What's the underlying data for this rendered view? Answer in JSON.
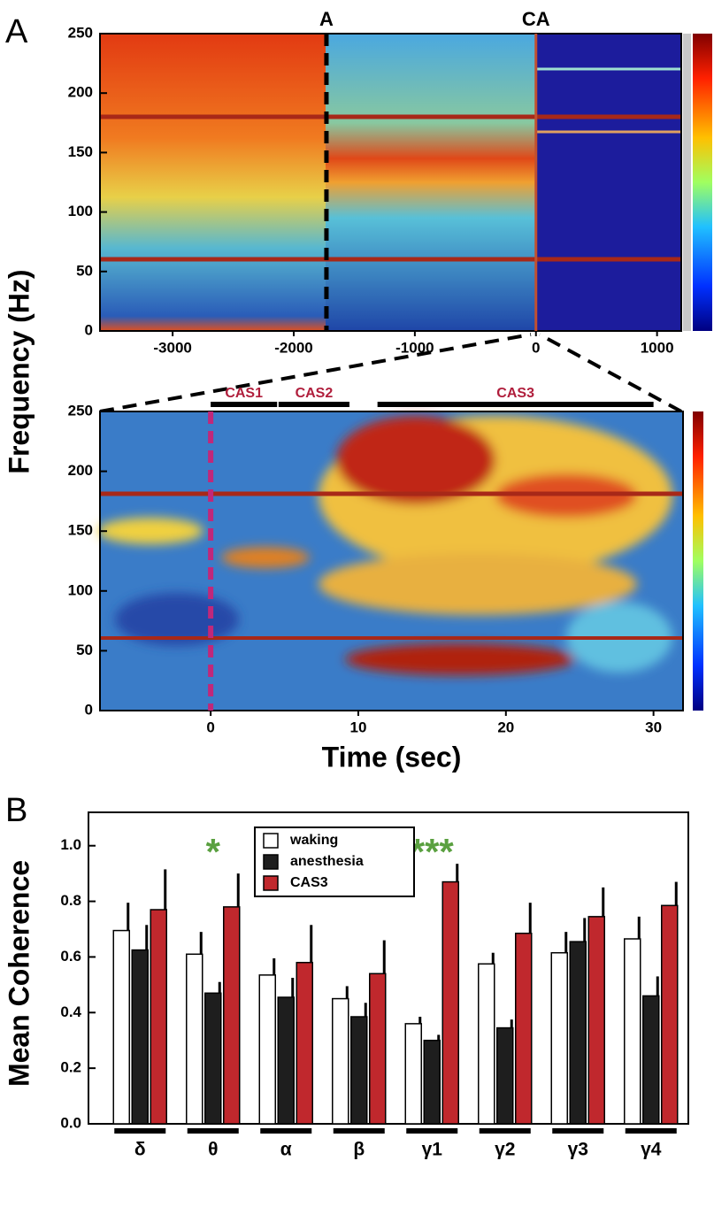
{
  "chart_data": [
    {
      "type": "spectrogram",
      "panel_label": "A",
      "ylabel": "Frequency (Hz)",
      "xlim": [
        -3600,
        1200
      ],
      "xticks": [
        -3000,
        -2000,
        -1000,
        0,
        1000
      ],
      "ylim": [
        0,
        250
      ],
      "yticks": [
        0,
        50,
        100,
        150,
        200,
        250
      ],
      "events": [
        {
          "label": "A",
          "x": -1730
        },
        {
          "label": "CA",
          "x": 0
        }
      ]
    },
    {
      "type": "spectrogram",
      "xlabel": "Time (sec)",
      "xlim": [
        -7.5,
        32
      ],
      "xticks": [
        0,
        10,
        20,
        30
      ],
      "ylim": [
        0,
        250
      ],
      "yticks": [
        0,
        50,
        100,
        150,
        200,
        250
      ],
      "marker_x": 0,
      "spans": [
        {
          "label": "CAS1",
          "start": 0,
          "end": 4.5
        },
        {
          "label": "CAS2",
          "start": 4.6,
          "end": 9.4
        },
        {
          "label": "CAS3",
          "start": 11.3,
          "end": 30
        }
      ]
    },
    {
      "type": "bar",
      "panel_label": "B",
      "ylabel": "Mean Coherence",
      "categories": [
        "δ",
        "θ",
        "α",
        "β",
        "γ1",
        "γ2",
        "γ3",
        "γ4"
      ],
      "series": [
        {
          "name": "waking",
          "color": "#ffffff",
          "values": [
            0.695,
            0.61,
            0.535,
            0.45,
            0.36,
            0.575,
            0.615,
            0.665
          ],
          "errors": [
            0.1,
            0.08,
            0.06,
            0.045,
            0.025,
            0.04,
            0.075,
            0.08
          ]
        },
        {
          "name": "anesthesia",
          "color": "#1e1e1e",
          "values": [
            0.625,
            0.47,
            0.455,
            0.385,
            0.3,
            0.345,
            0.655,
            0.46
          ],
          "errors": [
            0.09,
            0.04,
            0.07,
            0.05,
            0.02,
            0.03,
            0.085,
            0.07
          ]
        },
        {
          "name": "CAS3",
          "color": "#c0282d",
          "values": [
            0.77,
            0.78,
            0.58,
            0.54,
            0.87,
            0.685,
            0.745,
            0.785
          ],
          "errors": [
            0.145,
            0.12,
            0.135,
            0.12,
            0.065,
            0.11,
            0.105,
            0.085
          ]
        }
      ],
      "ylim": [
        0,
        1.12
      ],
      "yticks": [
        {
          "value": 0,
          "label": "0.0"
        },
        0.2,
        0.4,
        0.6,
        0.8,
        {
          "value": 1,
          "label": "1.0"
        }
      ],
      "annotations": [
        {
          "text": "*",
          "category": 1
        },
        {
          "text": "***",
          "category": 4
        }
      ],
      "legend": "top-center"
    }
  ]
}
